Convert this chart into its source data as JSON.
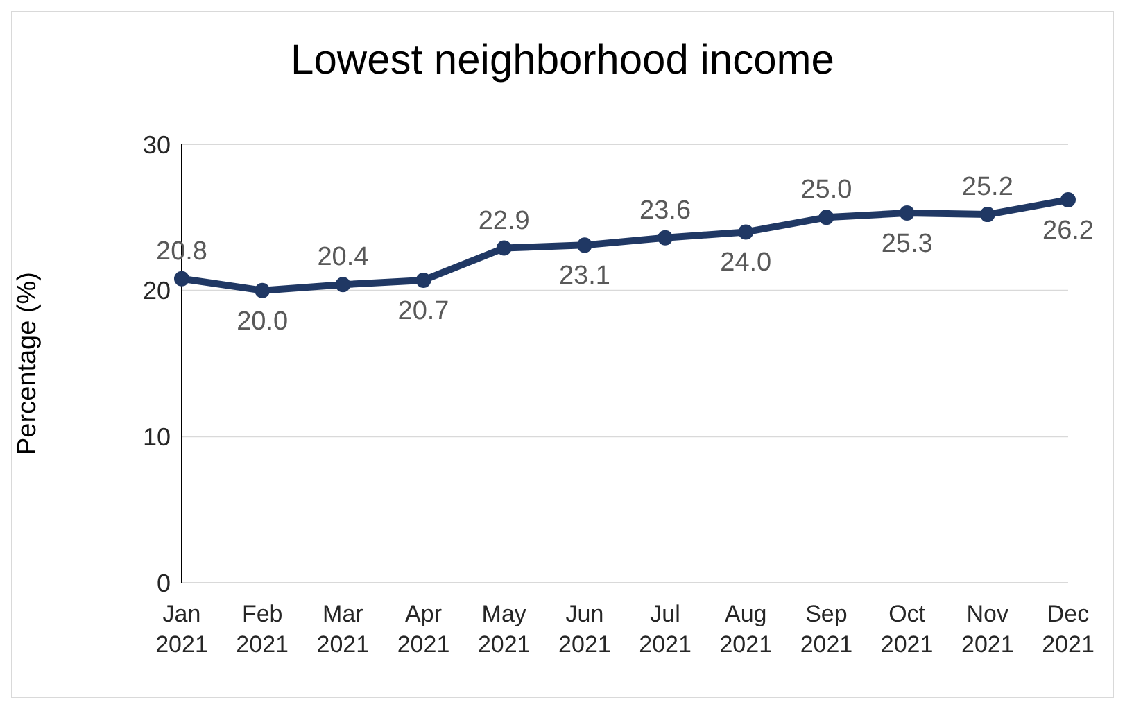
{
  "chart_data": {
    "type": "line",
    "title": "Lowest neighborhood income",
    "ylabel": "Percentage (%)",
    "categories": [
      "Jan 2021",
      "Feb 2021",
      "Mar 2021",
      "Apr 2021",
      "May 2021",
      "Jun 2021",
      "Jul 2021",
      "Aug 2021",
      "Sep 2021",
      "Oct 2021",
      "Nov 2021",
      "Dec 2021"
    ],
    "series": [
      {
        "color": "#203864",
        "values": [
          20.8,
          20.0,
          20.4,
          20.7,
          22.9,
          23.1,
          23.6,
          24.0,
          25.0,
          25.3,
          25.2,
          26.2
        ],
        "value_labels": [
          "20.8",
          "20.0",
          "20.4",
          "20.7",
          "22.9",
          "23.1",
          "23.6",
          "24.0",
          "25.0",
          "25.3",
          "25.2",
          "26.2"
        ]
      }
    ],
    "ylim": [
      0,
      30
    ],
    "yticks": [
      0,
      10,
      20,
      30
    ],
    "grid": "y",
    "marker": "circle",
    "line_style": "solid"
  }
}
